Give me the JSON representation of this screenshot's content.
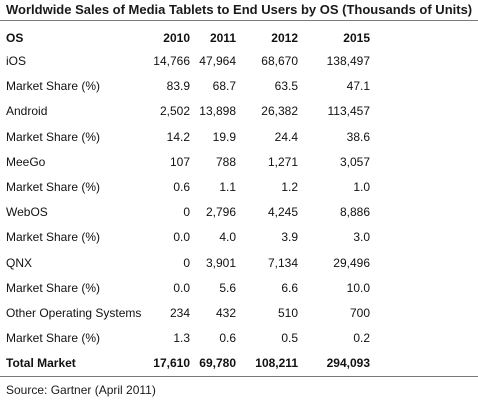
{
  "title": "Worldwide Sales of Media Tablets to End Users by OS (Thousands of Units)",
  "table": {
    "headers": [
      "OS",
      "2010",
      "2011",
      "2012",
      "2015"
    ],
    "rows": [
      [
        "iOS",
        "14,766",
        "47,964",
        "68,670",
        "138,497"
      ],
      [
        "Market Share (%)",
        "83.9",
        "68.7",
        "63.5",
        "47.1"
      ],
      [
        "Android",
        "2,502",
        "13,898",
        "26,382",
        "113,457"
      ],
      [
        "Market Share (%)",
        "14.2",
        "19.9",
        "24.4",
        "38.6"
      ],
      [
        "MeeGo",
        "107",
        "788",
        "1,271",
        "3,057"
      ],
      [
        "Market Share (%)",
        "0.6",
        "1.1",
        "1.2",
        "1.0"
      ],
      [
        "WebOS",
        "0",
        "2,796",
        "4,245",
        "8,886"
      ],
      [
        "Market Share (%)",
        "0.0",
        "4.0",
        "3.9",
        "3.0"
      ],
      [
        "QNX",
        "0",
        "3,901",
        "7,134",
        "29,496"
      ],
      [
        "Market Share (%)",
        "0.0",
        "5.6",
        "6.6",
        "10.0"
      ],
      [
        "Other Operating Systems",
        "234",
        "432",
        "510",
        "700"
      ],
      [
        "Market Share (%)",
        "1.3",
        "0.6",
        "0.5",
        "0.2"
      ]
    ],
    "total": [
      "Total Market",
      "17,610",
      "69,780",
      "108,211",
      "294,093"
    ]
  },
  "source": "Source: Gartner (April 2011)"
}
